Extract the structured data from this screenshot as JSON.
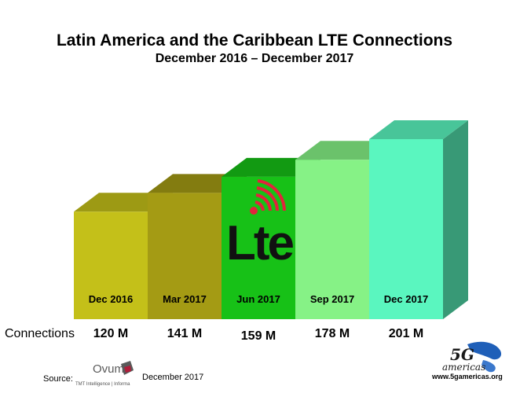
{
  "chart_data": {
    "type": "bar",
    "title": "Latin America and the Caribbean LTE Connections",
    "subtitle": "December 2016 – December 2017",
    "categories": [
      "Dec 2016",
      "Mar 2017",
      "Jun 2017",
      "Sep 2017",
      "Dec 2017"
    ],
    "series": [
      {
        "name": "Connections",
        "values": [
          120,
          141,
          159,
          178,
          201
        ]
      }
    ],
    "value_labels": [
      "120 M",
      "141 M",
      "159 M",
      "178 M",
      "201 M"
    ],
    "units": "M",
    "ylim": [
      0,
      201
    ],
    "colors": [
      "#c4c019",
      "#a49b14",
      "#17c117",
      "#86f286",
      "#5af6bf"
    ],
    "grid": false,
    "legend": "none"
  },
  "table": {
    "row_label": "Connections"
  },
  "source": {
    "label": "Source:",
    "provider": "Ovum",
    "provider_tagline": "TMT Intelligence | Informa",
    "date": "December 2017"
  },
  "logos": {
    "lte": "Lte",
    "fiveg": "5G",
    "fiveg_word": "americas",
    "fiveg_url": "www.5gamericas.org"
  }
}
